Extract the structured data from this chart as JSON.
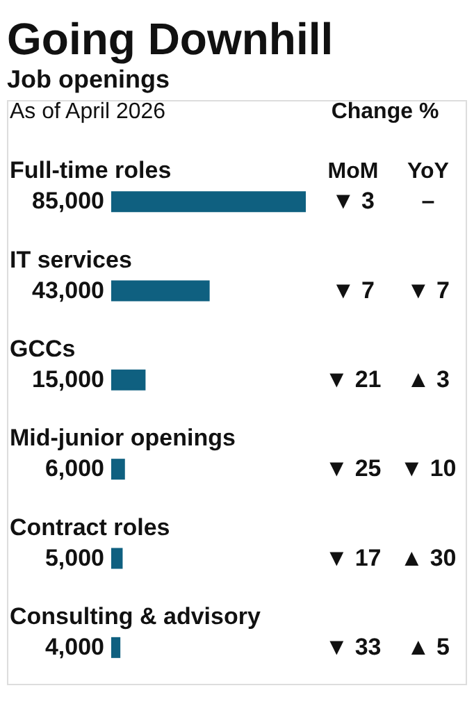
{
  "chart_data": {
    "type": "bar",
    "orientation": "horizontal",
    "title": "Going Downhill",
    "subtitle": "Job openings",
    "categories": [
      "Full-time roles",
      "IT services",
      "GCCs",
      "Mid-junior openings",
      "Contract roles",
      "Consulting & advisory"
    ],
    "values": [
      85000,
      43000,
      15000,
      6000,
      5000,
      4000
    ],
    "color": "#0f6080",
    "value_labels": [
      "85,000",
      "43,000",
      "15,000",
      "6,000",
      "5,000",
      "4,000"
    ],
    "annotations": [
      "As of April 2026",
      "Change %",
      "MoM",
      "YoY",
      "▼ 3",
      "–",
      "▼ 7",
      "▼ 7",
      "▼ 21",
      "▲ 3",
      "▼ 25",
      "▼ 10",
      "▼ 17",
      "▲ 30",
      "▼ 33",
      "▲ 5"
    ]
  }
}
